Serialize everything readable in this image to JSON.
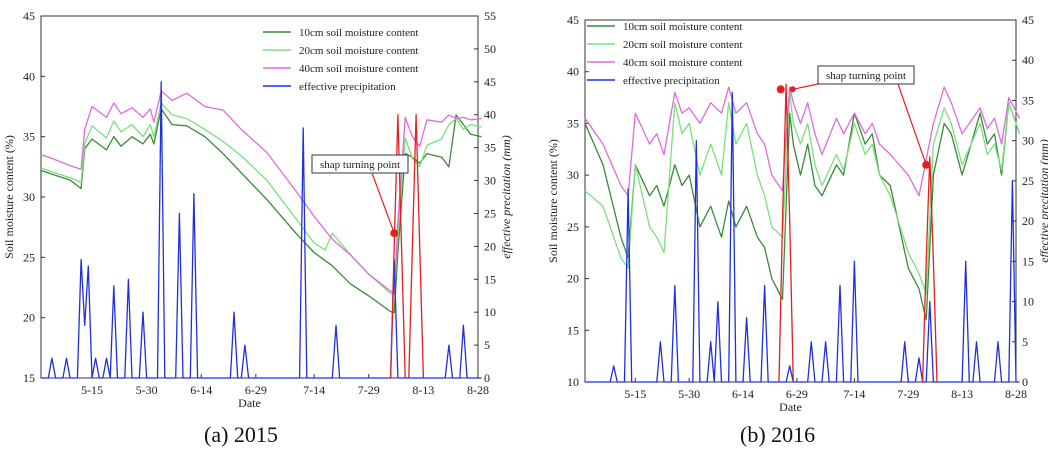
{
  "colors": {
    "moisture_10cm": "#3a8a3a",
    "moisture_20cm": "#7be07b",
    "moisture_40cm": "#e06ae0",
    "precipitation": "#1f2fe0",
    "turning": "#e32020"
  },
  "chart_data": [
    {
      "type": "line",
      "caption": "(a) 2015",
      "xlabel": "Date",
      "ylabel_left": "Soil moisture content (%)",
      "ylabel_right": "effective precitation (mm)",
      "xlim": [
        0,
        120
      ],
      "ylim_left": [
        15,
        45
      ],
      "ylim_right": [
        0,
        55
      ],
      "yticks_left": [
        15,
        20,
        25,
        30,
        35,
        40,
        45
      ],
      "yticks_right": [
        0,
        5,
        10,
        15,
        20,
        25,
        30,
        35,
        40,
        45,
        50,
        55
      ],
      "xtick_positions": [
        14,
        29,
        44,
        59,
        75,
        90,
        105,
        120
      ],
      "xtick_labels": [
        "5-15",
        "5-30",
        "6-14",
        "6-29",
        "7-14",
        "7-29",
        "8-13",
        "8-28"
      ],
      "legend": [
        "10cm soil moisture content",
        "20cm soil moisture content",
        "40cm soil moisture content",
        "effective precipitation"
      ],
      "annotation": {
        "text": "shap turning point",
        "x": 97,
        "y": 27
      },
      "series": [
        {
          "name": "10cm soil moisture content",
          "axis": "left",
          "x": [
            0,
            3,
            8,
            11,
            12,
            14,
            18,
            20,
            22,
            25,
            28,
            30,
            31,
            33,
            36,
            40,
            45,
            50,
            55,
            62,
            70,
            75,
            80,
            85,
            90,
            96,
            97,
            98,
            100,
            102,
            104,
            106,
            110,
            112,
            114,
            116,
            118,
            121
          ],
          "y": [
            32.2,
            31.9,
            31.4,
            30.7,
            34.0,
            34.8,
            33.9,
            35.0,
            34.2,
            35.0,
            34.4,
            35.2,
            34.4,
            37.3,
            36.0,
            35.9,
            35.0,
            33.6,
            32.0,
            29.8,
            27.0,
            25.4,
            24.3,
            22.8,
            21.8,
            20.5,
            20.4,
            25.4,
            33.6,
            33.3,
            32.8,
            33.6,
            33.3,
            32.5,
            36.8,
            36.0,
            35.2,
            35.0
          ]
        },
        {
          "name": "20cm soil moisture content",
          "axis": "left",
          "x": [
            0,
            3,
            8,
            11,
            12,
            14,
            18,
            20,
            22,
            25,
            28,
            30,
            31,
            33,
            36,
            40,
            45,
            50,
            55,
            62,
            70,
            75,
            78,
            80,
            85,
            90,
            96,
            97,
            98,
            100,
            102,
            104,
            106,
            110,
            112,
            114,
            116,
            118,
            121
          ],
          "y": [
            32.4,
            32.1,
            31.6,
            31.2,
            34.4,
            35.9,
            34.9,
            36.3,
            35.4,
            36.0,
            35.0,
            36.0,
            35.0,
            37.8,
            36.8,
            36.5,
            35.6,
            34.6,
            33.4,
            31.4,
            28.2,
            26.2,
            25.6,
            27.0,
            25.2,
            23.6,
            22.0,
            21.9,
            26.9,
            34.9,
            33.2,
            32.5,
            34.3,
            34.8,
            36.0,
            36.5,
            35.6,
            36.0,
            35.8
          ]
        },
        {
          "name": "40cm soil moisture content",
          "axis": "left",
          "x": [
            0,
            3,
            8,
            11,
            12,
            14,
            18,
            20,
            22,
            25,
            28,
            30,
            31,
            33,
            36,
            40,
            45,
            50,
            55,
            62,
            70,
            75,
            80,
            85,
            90,
            96,
            97,
            98,
            100,
            102,
            104,
            106,
            110,
            112,
            114,
            116,
            118,
            121
          ],
          "y": [
            33.5,
            33.2,
            32.6,
            32.3,
            35.6,
            37.5,
            36.6,
            37.8,
            36.9,
            37.4,
            36.6,
            37.3,
            36.2,
            38.8,
            38.0,
            38.6,
            37.5,
            37.2,
            35.6,
            33.7,
            30.5,
            28.4,
            26.5,
            25.2,
            23.6,
            22.2,
            22.0,
            28.0,
            36.6,
            35.0,
            34.2,
            36.4,
            36.2,
            36.8,
            36.5,
            36.6,
            36.4,
            36.5
          ]
        },
        {
          "name": "effective precipitation",
          "axis": "right",
          "x": [
            0,
            2,
            3,
            4,
            6,
            7,
            8,
            10,
            11,
            12,
            13,
            14,
            15,
            16,
            17,
            18,
            19,
            20,
            21,
            22,
            23,
            24,
            25,
            26,
            27,
            28,
            29,
            30,
            31,
            32,
            33,
            34,
            35,
            36,
            37,
            38,
            39,
            40,
            41,
            42,
            43,
            44,
            45,
            46,
            47,
            52,
            53,
            54,
            55,
            56,
            57,
            70,
            71,
            72,
            73,
            79,
            80,
            81,
            82,
            95,
            96,
            97,
            98,
            99,
            100,
            101,
            103,
            104,
            105,
            106,
            107,
            111,
            112,
            113,
            114,
            115,
            116,
            117,
            118,
            119,
            120,
            121
          ],
          "y": [
            0,
            0,
            3,
            0,
            0,
            3,
            0,
            0,
            18,
            8,
            17,
            0,
            3,
            0,
            0,
            3,
            0,
            14,
            0,
            0,
            0,
            15,
            0,
            0,
            0,
            10,
            0,
            0,
            0,
            0,
            45,
            0,
            0,
            0,
            0,
            25,
            0,
            0,
            0,
            28,
            0,
            0,
            0,
            0,
            0,
            0,
            10,
            0,
            0,
            5,
            0,
            0,
            0,
            38,
            0,
            0,
            0,
            8,
            0,
            0,
            0,
            18,
            0,
            0,
            0,
            0,
            0,
            0,
            0,
            0,
            0,
            0,
            5,
            0,
            0,
            0,
            8,
            0,
            0,
            0,
            0,
            0
          ]
        },
        {
          "name": "turning",
          "axis": "right",
          "x": [
            96,
            97,
            98,
            99,
            100
          ],
          "y": [
            0,
            20,
            40,
            20,
            0
          ]
        },
        {
          "name": "turning",
          "axis": "right",
          "x": [
            101,
            102,
            103,
            104,
            105
          ],
          "y": [
            0,
            20,
            40,
            20,
            0
          ]
        }
      ]
    },
    {
      "type": "line",
      "caption": "(b) 2016",
      "xlabel": "Date",
      "ylabel_left": "Soil moisture content (%)",
      "ylabel_right": "effective precitation (mm)",
      "xlim": [
        0,
        120
      ],
      "ylim_left": [
        10,
        45
      ],
      "ylim_right": [
        0,
        45
      ],
      "yticks_left": [
        10,
        15,
        20,
        25,
        30,
        35,
        40,
        45
      ],
      "yticks_right": [
        0,
        5,
        10,
        15,
        20,
        25,
        30,
        35,
        40,
        45
      ],
      "xtick_positions": [
        14,
        29,
        44,
        59,
        75,
        90,
        105,
        120
      ],
      "xtick_labels": [
        "5-15",
        "5-30",
        "6-14",
        "6-29",
        "7-14",
        "7-29",
        "8-13",
        "8-28"
      ],
      "legend": [
        "10cm soil moisture content",
        "20cm soil moisture content",
        "40cm soil moisture content",
        "effective precipitation"
      ],
      "annotation": {
        "text": "shap turning point",
        "x": 95,
        "y": 31
      },
      "series": [
        {
          "name": "10cm soil moisture content",
          "axis": "left",
          "x": [
            0,
            5,
            10,
            12,
            14,
            18,
            20,
            22,
            25,
            27,
            29,
            32,
            35,
            38,
            40,
            42,
            45,
            48,
            50,
            52,
            55,
            57,
            58,
            60,
            62,
            64,
            66,
            70,
            72,
            75,
            78,
            80,
            82,
            85,
            90,
            93,
            95,
            97,
            100,
            102,
            105,
            110,
            112,
            114,
            116,
            118,
            121
          ],
          "y": [
            35.0,
            31.0,
            24.0,
            22.0,
            31.0,
            28.0,
            29.0,
            27.0,
            31.0,
            29.0,
            30.0,
            25.0,
            27.0,
            24.0,
            27.5,
            25.0,
            27.0,
            24.0,
            23.0,
            20.0,
            18.0,
            36.0,
            33.0,
            30.0,
            33.0,
            29.0,
            28.0,
            31.0,
            30.0,
            36.0,
            33.0,
            34.0,
            30.0,
            29.0,
            21.0,
            19.0,
            16.0,
            30.0,
            35.0,
            34.0,
            30.0,
            36.0,
            33.0,
            34.0,
            30.0,
            37.0,
            34.0
          ]
        },
        {
          "name": "20cm soil moisture content",
          "axis": "left",
          "x": [
            0,
            5,
            10,
            12,
            14,
            18,
            20,
            22,
            25,
            27,
            29,
            32,
            35,
            38,
            40,
            42,
            45,
            48,
            50,
            52,
            55,
            57,
            58,
            60,
            62,
            64,
            66,
            70,
            72,
            75,
            78,
            80,
            82,
            85,
            90,
            93,
            95,
            97,
            100,
            102,
            105,
            110,
            112,
            114,
            116,
            118,
            121
          ],
          "y": [
            28.5,
            27.0,
            22.0,
            21.0,
            31.0,
            25.0,
            24.0,
            22.5,
            37.0,
            34.0,
            35.0,
            30.0,
            33.0,
            30.0,
            37.0,
            33.0,
            35.0,
            30.0,
            28.0,
            25.0,
            24.0,
            38.0,
            35.0,
            33.0,
            35.0,
            31.0,
            29.0,
            32.0,
            30.5,
            35.0,
            32.0,
            33.0,
            30.0,
            28.0,
            22.5,
            20.5,
            18.5,
            33.0,
            36.5,
            35.0,
            31.0,
            35.0,
            32.0,
            33.0,
            30.5,
            37.0,
            34.0
          ]
        },
        {
          "name": "40cm soil moisture content",
          "axis": "left",
          "x": [
            0,
            5,
            10,
            12,
            14,
            18,
            20,
            22,
            25,
            27,
            29,
            32,
            35,
            38,
            40,
            42,
            45,
            48,
            50,
            52,
            55,
            57,
            58,
            60,
            62,
            64,
            66,
            70,
            72,
            75,
            78,
            80,
            82,
            85,
            90,
            93,
            95,
            97,
            100,
            102,
            105,
            110,
            112,
            114,
            116,
            118,
            121
          ],
          "y": [
            35.5,
            33.0,
            29.0,
            28.0,
            36.0,
            33.0,
            34.0,
            32.0,
            38.0,
            36.0,
            36.5,
            35.0,
            37.0,
            36.0,
            38.5,
            36.0,
            37.0,
            34.0,
            33.0,
            30.0,
            28.5,
            38.5,
            37.0,
            35.0,
            37.0,
            34.0,
            32.0,
            35.5,
            34.0,
            36.0,
            34.0,
            35.0,
            33.0,
            32.0,
            30.0,
            28.0,
            31.5,
            35.0,
            38.5,
            37.0,
            34.0,
            36.5,
            34.5,
            35.5,
            33.0,
            37.5,
            35.5
          ]
        },
        {
          "name": "effective precipitation",
          "axis": "right",
          "x": [
            0,
            7,
            8,
            9,
            11,
            12,
            13,
            20,
            21,
            22,
            24,
            25,
            26,
            27,
            30,
            31,
            32,
            34,
            35,
            36,
            37,
            38,
            40,
            41,
            42,
            44,
            45,
            46,
            49,
            50,
            51,
            56,
            57,
            58,
            62,
            63,
            64,
            66,
            67,
            68,
            70,
            71,
            72,
            74,
            75,
            76,
            88,
            89,
            90,
            92,
            93,
            94,
            95,
            96,
            97,
            98,
            105,
            106,
            107,
            108,
            109,
            110,
            111,
            112,
            114,
            115,
            116,
            118,
            119,
            120,
            121
          ],
          "y": [
            0,
            0,
            2,
            0,
            0,
            24,
            0,
            0,
            5,
            0,
            0,
            12,
            0,
            0,
            0,
            30,
            0,
            0,
            5,
            0,
            10,
            0,
            0,
            36,
            0,
            0,
            8,
            0,
            0,
            12,
            0,
            0,
            2,
            0,
            0,
            5,
            0,
            0,
            5,
            0,
            0,
            12,
            0,
            0,
            15,
            0,
            0,
            5,
            0,
            0,
            3,
            0,
            0,
            10,
            0,
            0,
            0,
            15,
            0,
            0,
            5,
            0,
            0,
            0,
            0,
            5,
            0,
            0,
            25,
            0,
            0
          ]
        },
        {
          "name": "turning",
          "axis": "right",
          "x": [
            54,
            55,
            56,
            57,
            58
          ],
          "y": [
            0,
            20,
            37,
            20,
            0
          ]
        },
        {
          "name": "turning",
          "axis": "right",
          "x": [
            94,
            95,
            96,
            97,
            98
          ],
          "y": [
            0,
            15,
            28,
            15,
            0
          ]
        }
      ]
    }
  ]
}
